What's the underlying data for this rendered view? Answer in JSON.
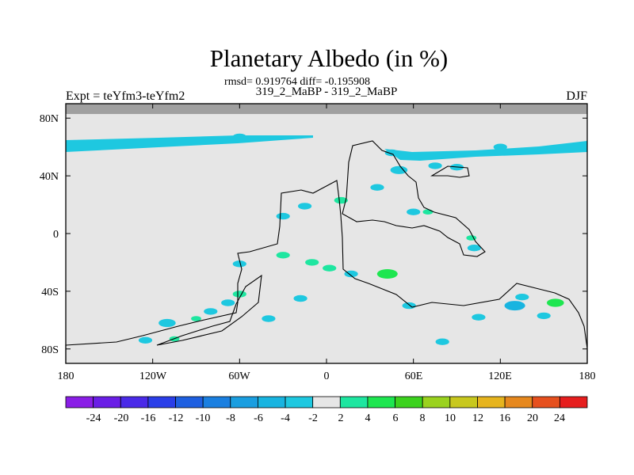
{
  "chart_data": {
    "type": "heatmap",
    "title": "Planetary Albedo (in %)",
    "stats": "rmsd= 0.919764 diff= -0.195908",
    "subtitle": "319_2_MaBP - 319_2_MaBP",
    "left_label": "Expt = teYfm3-teYfm2",
    "right_label": "DJF",
    "x_ticks": [
      "180",
      "120W",
      "60W",
      "0",
      "60E",
      "120E",
      "180"
    ],
    "y_ticks": [
      "80N",
      "40N",
      "0",
      "40S",
      "80S"
    ],
    "x_range": [
      -180,
      180
    ],
    "y_range": [
      -90,
      90
    ],
    "colorbar": {
      "labels": [
        "-24",
        "-20",
        "-16",
        "-12",
        "-10",
        "-8",
        "-6",
        "-4",
        "-2",
        "2",
        "4",
        "6",
        "8",
        "10",
        "12",
        "16",
        "20",
        "24"
      ],
      "colors": [
        "#8a1ee6",
        "#6a1ee6",
        "#4a2ae8",
        "#2a3ee8",
        "#1e5fe0",
        "#1a7fe0",
        "#1a9ee0",
        "#18b4e0",
        "#1ec8e0",
        "#e6e6e6",
        "#1ee6a0",
        "#1ee650",
        "#3cd21e",
        "#9ad21e",
        "#c8c81e",
        "#e6b41e",
        "#e6881e",
        "#e6501e",
        "#e61e1e"
      ]
    },
    "neutral_color": "#e6e6e6",
    "missing_color": "#a0a0a0",
    "anomalies": [
      {
        "lon": -120,
        "lat": 63,
        "value": -3
      },
      {
        "lon": -60,
        "lat": 67,
        "value": -3
      },
      {
        "lon": 120,
        "lat": 60,
        "value": -3
      },
      {
        "lon": 50,
        "lat": 44,
        "value": -4
      },
      {
        "lon": 45,
        "lat": 56,
        "value": -3
      },
      {
        "lon": 75,
        "lat": 47,
        "value": -3
      },
      {
        "lon": 90,
        "lat": 46,
        "value": -3
      },
      {
        "lon": 35,
        "lat": 32,
        "value": -3
      },
      {
        "lon": 60,
        "lat": 15,
        "value": -3
      },
      {
        "lon": 70,
        "lat": 15,
        "value": 2
      },
      {
        "lon": 100,
        "lat": -3,
        "value": 2
      },
      {
        "lon": 102,
        "lat": -10,
        "value": -3
      },
      {
        "lon": 10,
        "lat": 23,
        "value": 3
      },
      {
        "lon": -30,
        "lat": 12,
        "value": -3
      },
      {
        "lon": -15,
        "lat": 19,
        "value": -3
      },
      {
        "lon": -30,
        "lat": -15,
        "value": 3
      },
      {
        "lon": -10,
        "lat": -20,
        "value": 3
      },
      {
        "lon": 2,
        "lat": -24,
        "value": 3
      },
      {
        "lon": 42,
        "lat": -28,
        "value": 5
      },
      {
        "lon": 17,
        "lat": -28,
        "value": -3
      },
      {
        "lon": -60,
        "lat": -21,
        "value": -3
      },
      {
        "lon": -110,
        "lat": -62,
        "value": -4
      },
      {
        "lon": -90,
        "lat": -59,
        "value": 2
      },
      {
        "lon": -80,
        "lat": -54,
        "value": -3
      },
      {
        "lon": -68,
        "lat": -48,
        "value": -3
      },
      {
        "lon": -60,
        "lat": -42,
        "value": 3
      },
      {
        "lon": -40,
        "lat": -59,
        "value": -3
      },
      {
        "lon": -125,
        "lat": -74,
        "value": -3
      },
      {
        "lon": -105,
        "lat": -73,
        "value": 2
      },
      {
        "lon": 130,
        "lat": -50,
        "value": -5
      },
      {
        "lon": 158,
        "lat": -48,
        "value": 4
      },
      {
        "lon": 150,
        "lat": -57,
        "value": -3
      },
      {
        "lon": 105,
        "lat": -58,
        "value": -3
      },
      {
        "lon": 80,
        "lat": -75,
        "value": -3
      },
      {
        "lon": 135,
        "lat": -44,
        "value": -3
      },
      {
        "lon": 57,
        "lat": -50,
        "value": -3
      },
      {
        "lon": -18,
        "lat": -45,
        "value": -3
      }
    ]
  }
}
